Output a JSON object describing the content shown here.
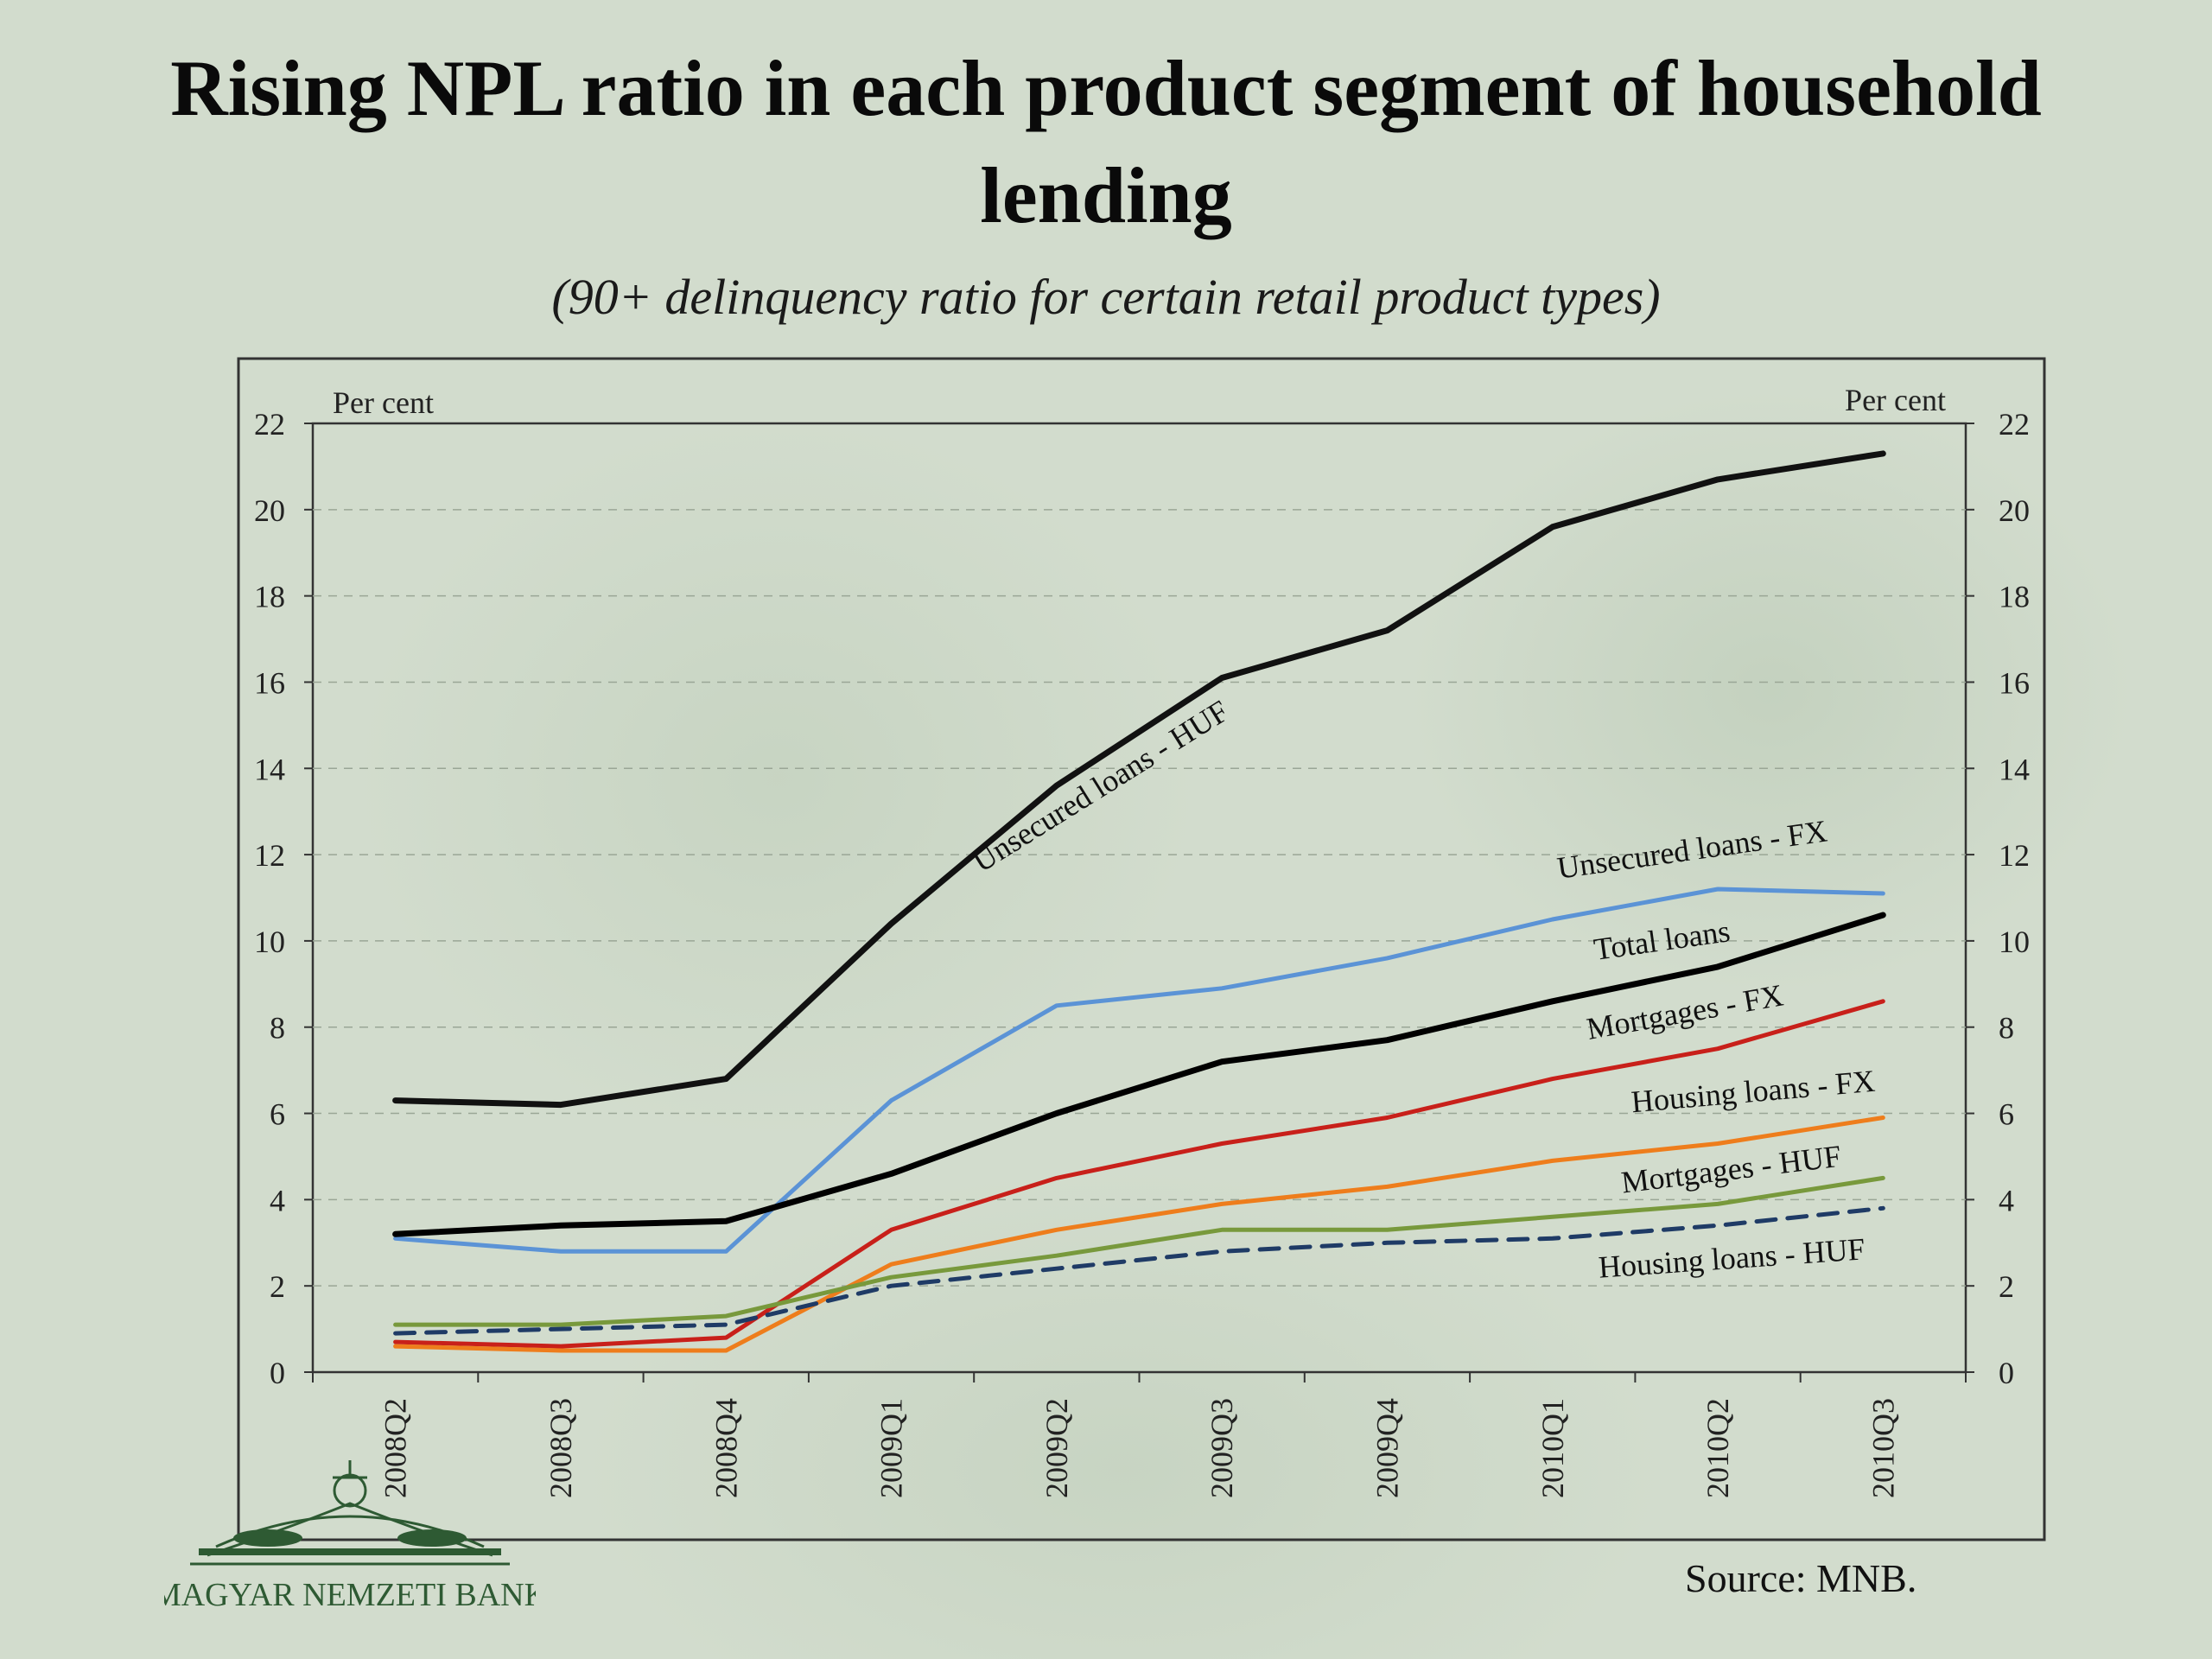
{
  "title": "Rising NPL ratio in each product segment of household lending",
  "subtitle": "(90+ delinquency ratio for certain retail product types)",
  "source": "Source: MNB.",
  "logo": {
    "text": "MAGYAR NEMZETI BANK",
    "color": "#2e5a33"
  },
  "chart_data": {
    "type": "line",
    "title": "Rising NPL ratio in each product segment of household lending",
    "subtitle": "(90+ delinquency ratio for certain retail product types)",
    "y_left_label": "Per cent",
    "y_right_label": "Per cent",
    "ylim": [
      0,
      22
    ],
    "yticks": [
      0,
      2,
      4,
      6,
      8,
      10,
      12,
      14,
      16,
      18,
      20,
      22
    ],
    "grid": "horizontal dashed",
    "categories": [
      "2008Q2",
      "2008Q3",
      "2008Q4",
      "2009Q1",
      "2009Q2",
      "2009Q3",
      "2009Q4",
      "2010Q1",
      "2010Q2",
      "2010Q3"
    ],
    "series": [
      {
        "name": "Unsecured loans - HUF",
        "color": "#111111",
        "dash": false,
        "values": [
          6.3,
          6.2,
          6.8,
          10.4,
          13.6,
          16.1,
          17.2,
          19.6,
          20.7,
          21.3
        ]
      },
      {
        "name": "Unsecured loans - FX",
        "color": "#5b93d6",
        "dash": false,
        "values": [
          3.1,
          2.8,
          2.8,
          6.3,
          8.5,
          8.9,
          9.6,
          10.5,
          11.2,
          11.1
        ]
      },
      {
        "name": "Total loans",
        "color": "#000000",
        "dash": false,
        "values": [
          3.2,
          3.4,
          3.5,
          4.6,
          6.0,
          7.2,
          7.7,
          8.6,
          9.4,
          10.6
        ]
      },
      {
        "name": "Mortgages - FX",
        "color": "#c8201a",
        "dash": false,
        "values": [
          0.7,
          0.6,
          0.8,
          3.3,
          4.5,
          5.3,
          5.9,
          6.8,
          7.5,
          8.6
        ]
      },
      {
        "name": "Housing loans - FX",
        "color": "#ee7d1c",
        "dash": false,
        "values": [
          0.6,
          0.5,
          0.5,
          2.5,
          3.3,
          3.9,
          4.3,
          4.9,
          5.3,
          5.9
        ]
      },
      {
        "name": "Mortgages - HUF",
        "color": "#78993c",
        "dash": false,
        "values": [
          1.1,
          1.1,
          1.3,
          2.2,
          2.7,
          3.3,
          3.3,
          3.6,
          3.9,
          4.5
        ]
      },
      {
        "name": "Housing loans - HUF",
        "color": "#1f3b66",
        "dash": true,
        "values": [
          0.9,
          1.0,
          1.1,
          2.0,
          2.4,
          2.8,
          3.0,
          3.1,
          3.4,
          3.8
        ]
      }
    ],
    "line_labels": [
      "Unsecured loans - HUF",
      "Unsecured loans - FX",
      "Total loans",
      "Mortgages - FX",
      "Housing loans - FX",
      "Mortgages - HUF",
      "Housing loans - HUF"
    ]
  }
}
